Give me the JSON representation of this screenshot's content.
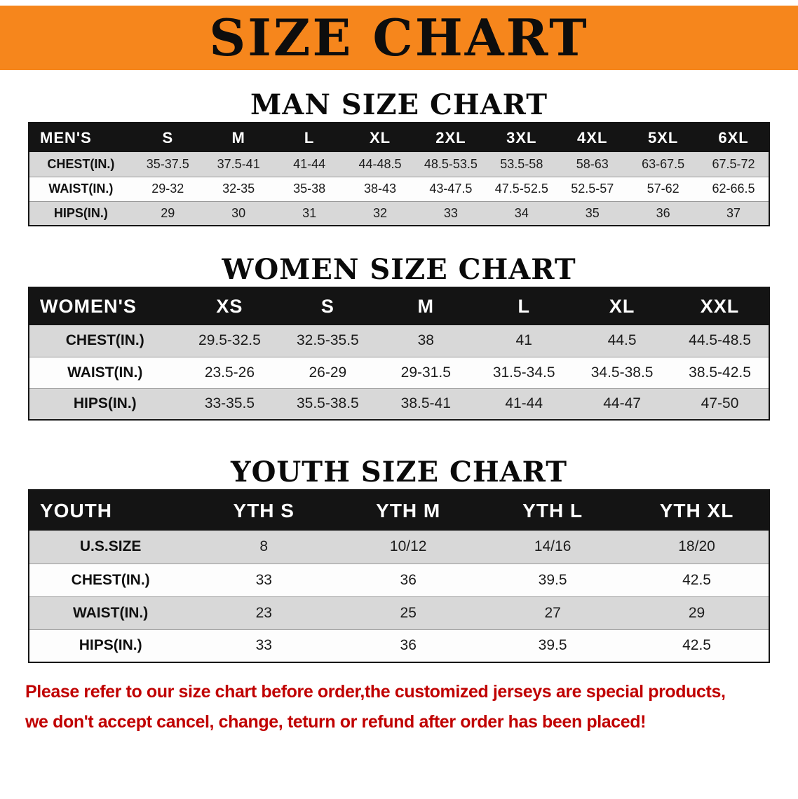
{
  "banner": {
    "title": "SIZE CHART",
    "bg_color": "#f6861c",
    "text_color": "#0d0d0d"
  },
  "sections": [
    {
      "id": "men",
      "heading": "MAN SIZE CHART",
      "table": {
        "header": [
          "MEN'S",
          "S",
          "M",
          "L",
          "XL",
          "2XL",
          "3XL",
          "4XL",
          "5XL",
          "6XL"
        ],
        "rows": [
          [
            "CHEST(IN.)",
            "35-37.5",
            "37.5-41",
            "41-44",
            "44-48.5",
            "48.5-53.5",
            "53.5-58",
            "58-63",
            "63-67.5",
            "67.5-72"
          ],
          [
            "WAIST(IN.)",
            "29-32",
            "32-35",
            "35-38",
            "38-43",
            "43-47.5",
            "47.5-52.5",
            "52.5-57",
            "57-62",
            "62-66.5"
          ],
          [
            "HIPS(IN.)",
            "29",
            "30",
            "31",
            "32",
            "33",
            "34",
            "35",
            "36",
            "37"
          ]
        ]
      }
    },
    {
      "id": "women",
      "heading": "WOMEN SIZE CHART",
      "table": {
        "header": [
          "WOMEN'S",
          "XS",
          "S",
          "M",
          "L",
          "XL",
          "XXL"
        ],
        "rows": [
          [
            "CHEST(IN.)",
            "29.5-32.5",
            "32.5-35.5",
            "38",
            "41",
            "44.5",
            "44.5-48.5"
          ],
          [
            "WAIST(IN.)",
            "23.5-26",
            "26-29",
            "29-31.5",
            "31.5-34.5",
            "34.5-38.5",
            "38.5-42.5"
          ],
          [
            "HIPS(IN.)",
            "33-35.5",
            "35.5-38.5",
            "38.5-41",
            "41-44",
            "44-47",
            "47-50"
          ]
        ]
      }
    },
    {
      "id": "youth",
      "heading": "YOUTH SIZE CHART",
      "table": {
        "header": [
          "YOUTH",
          "YTH S",
          "YTH M",
          "YTH L",
          "YTH XL"
        ],
        "rows": [
          [
            "U.S.SIZE",
            "8",
            "10/12",
            "14/16",
            "18/20"
          ],
          [
            "CHEST(IN.)",
            "33",
            "36",
            "39.5",
            "42.5"
          ],
          [
            "WAIST(IN.)",
            "23",
            "25",
            "27",
            "29"
          ],
          [
            "HIPS(IN.)",
            "33",
            "36",
            "39.5",
            "42.5"
          ]
        ]
      }
    }
  ],
  "style_colors": {
    "table_header_bg": "#141414",
    "row_alt_bg": "#d8d8d8",
    "disclaimer_red": "#c00000"
  },
  "disclaimer": {
    "line1": "Please refer to our size chart before order,the customized jerseys are special products,",
    "line2": "we don't accept cancel, change, teturn or refund after order has been placed!"
  }
}
